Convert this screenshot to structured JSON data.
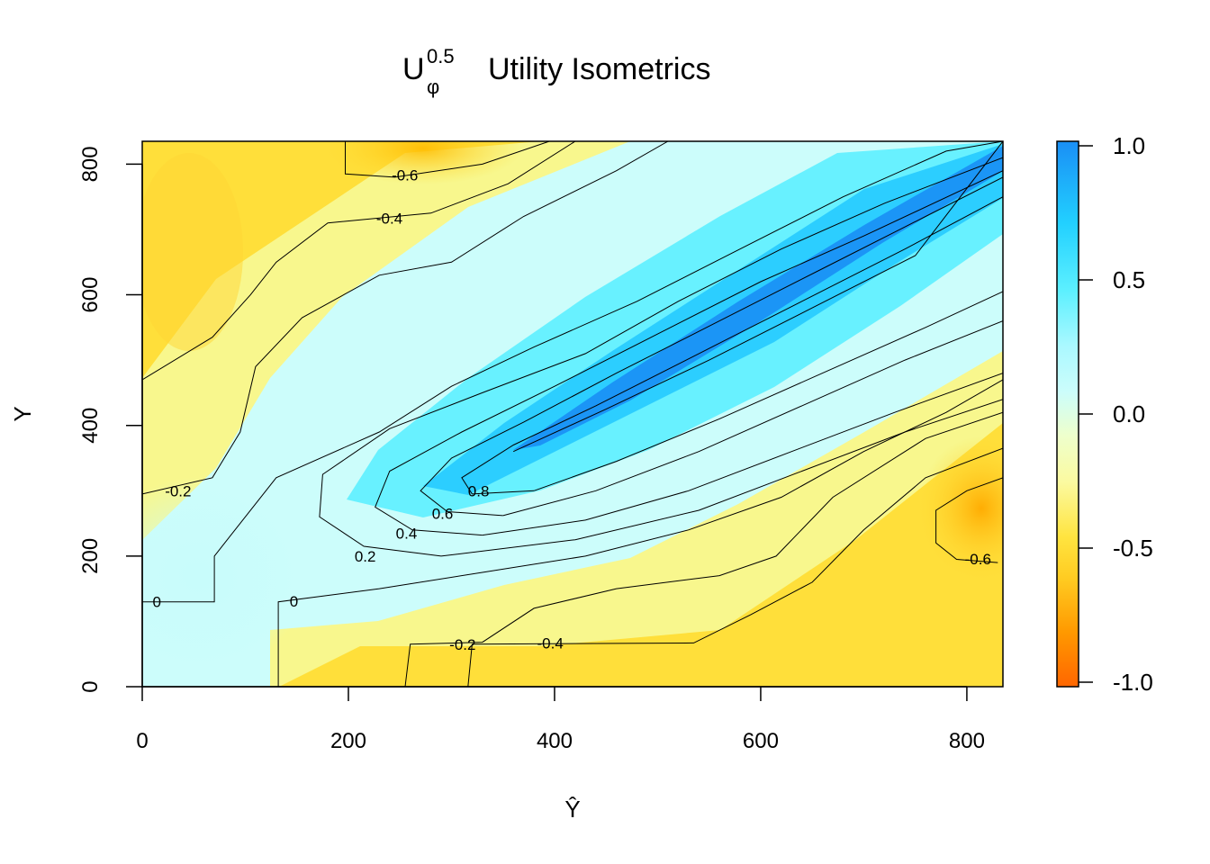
{
  "chart_data": {
    "type": "contour",
    "title": {
      "symbol": "U",
      "superscript": "0.5",
      "subscript": "φ",
      "text": "Utility Isometrics"
    },
    "xlabel": "Ŷ",
    "ylabel": "Y",
    "xlim": [
      0,
      835
    ],
    "ylim": [
      0,
      835
    ],
    "x_ticks": [
      0,
      200,
      400,
      600,
      800
    ],
    "y_ticks": [
      0,
      200,
      400,
      600,
      800
    ],
    "grid": false,
    "colorbar": {
      "placement": "right",
      "range": [
        -1.0,
        1.0
      ],
      "ticks": [
        {
          "value": 1.0,
          "label": "1.0"
        },
        {
          "value": 0.5,
          "label": "0.5"
        },
        {
          "value": 0.0,
          "label": "0.0"
        },
        {
          "value": -0.5,
          "label": "-0.5"
        },
        {
          "value": -1.0,
          "label": "-1.0"
        }
      ],
      "colors": [
        {
          "value": 1.0,
          "color": "#1a8ff5"
        },
        {
          "value": 0.7,
          "color": "#22d0ff"
        },
        {
          "value": 0.45,
          "color": "#5df0ff"
        },
        {
          "value": 0.25,
          "color": "#aaf8ff"
        },
        {
          "value": 0.08,
          "color": "#ccfdfb"
        },
        {
          "value": -0.08,
          "color": "#eeffcc"
        },
        {
          "value": -0.25,
          "color": "#fbfaa0"
        },
        {
          "value": -0.45,
          "color": "#ffe440"
        },
        {
          "value": -0.6,
          "color": "#ffcc22"
        },
        {
          "value": -0.8,
          "color": "#ff9900"
        },
        {
          "value": -1.0,
          "color": "#ff6600"
        }
      ]
    },
    "contours": [
      {
        "level": "-0.6",
        "label": "-0.6",
        "points": [
          [
            197,
            835
          ],
          [
            197,
            785
          ],
          [
            245,
            780
          ],
          [
            330,
            800
          ],
          [
            395,
            835
          ]
        ],
        "label_at": [
          242,
          783
        ]
      },
      {
        "level": "-0.4",
        "label": "-0.4",
        "points": [
          [
            420,
            835
          ],
          [
            355,
            770
          ],
          [
            280,
            725
          ],
          [
            180,
            710
          ],
          [
            130,
            650
          ],
          [
            105,
            600
          ],
          [
            68,
            535
          ],
          [
            0,
            470
          ]
        ],
        "label_at": [
          227,
          717
        ]
      },
      {
        "level": "-0.2",
        "label": "-0.2",
        "points": [
          [
            0,
            295
          ],
          [
            68,
            320
          ],
          [
            95,
            390
          ],
          [
            110,
            490
          ],
          [
            155,
            565
          ],
          [
            230,
            630
          ],
          [
            300,
            650
          ],
          [
            370,
            720
          ],
          [
            460,
            790
          ],
          [
            510,
            835
          ]
        ],
        "label_at": [
          22,
          300
        ]
      },
      {
        "level": "0",
        "label": "0",
        "points": [
          [
            0,
            130
          ],
          [
            70,
            130
          ],
          [
            70,
            200
          ],
          [
            130,
            320
          ],
          [
            230,
            390
          ],
          [
            300,
            460
          ],
          [
            380,
            520
          ],
          [
            480,
            590
          ],
          [
            580,
            670
          ],
          [
            680,
            750
          ],
          [
            780,
            820
          ],
          [
            835,
            835
          ]
        ],
        "label_at": [
          10,
          130
        ]
      },
      {
        "level": "0",
        "label": "0",
        "points": [
          [
            132,
            0
          ],
          [
            132,
            130
          ],
          [
            230,
            150
          ],
          [
            330,
            175
          ],
          [
            430,
            200
          ],
          [
            530,
            240
          ],
          [
            620,
            290
          ],
          [
            700,
            360
          ],
          [
            780,
            420
          ],
          [
            835,
            470
          ]
        ],
        "label_at": [
          143,
          131
        ]
      },
      {
        "level": "0.2",
        "label": "0.2",
        "points": [
          [
            290,
            200
          ],
          [
            215,
            215
          ],
          [
            172,
            260
          ],
          [
            175,
            325
          ],
          [
            240,
            395
          ],
          [
            330,
            450
          ],
          [
            430,
            510
          ],
          [
            520,
            590
          ],
          [
            620,
            670
          ],
          [
            720,
            740
          ],
          [
            835,
            810
          ]
        ],
        "label_at": [
          206,
          200
        ]
      },
      {
        "level": "0.2",
        "label": "0.2",
        "points": [
          [
            290,
            200
          ],
          [
            420,
            225
          ],
          [
            540,
            270
          ],
          [
            640,
            330
          ],
          [
            740,
            390
          ],
          [
            835,
            440
          ]
        ],
        "label_at": null
      },
      {
        "level": "0.4",
        "label": "0.4",
        "points": [
          [
            330,
            232
          ],
          [
            262,
            240
          ],
          [
            226,
            275
          ],
          [
            240,
            330
          ],
          [
            310,
            390
          ],
          [
            400,
            460
          ],
          [
            500,
            540
          ],
          [
            600,
            620
          ],
          [
            700,
            690
          ],
          [
            835,
            790
          ]
        ],
        "label_at": [
          246,
          235
        ]
      },
      {
        "level": "0.4",
        "label": "0.4",
        "points": [
          [
            330,
            232
          ],
          [
            430,
            255
          ],
          [
            530,
            300
          ],
          [
            630,
            360
          ],
          [
            730,
            420
          ],
          [
            835,
            480
          ]
        ],
        "label_at": null
      },
      {
        "level": "0.6",
        "label": "0.6",
        "points": [
          [
            350,
            262
          ],
          [
            296,
            268
          ],
          [
            270,
            300
          ],
          [
            300,
            350
          ],
          [
            370,
            405
          ],
          [
            460,
            480
          ],
          [
            560,
            560
          ],
          [
            660,
            640
          ],
          [
            760,
            720
          ],
          [
            835,
            780
          ]
        ],
        "label_at": [
          281,
          265
        ]
      },
      {
        "level": "0.6",
        "label": "0.6",
        "points": [
          [
            350,
            262
          ],
          [
            440,
            300
          ],
          [
            540,
            360
          ],
          [
            640,
            430
          ],
          [
            740,
            500
          ],
          [
            835,
            560
          ]
        ],
        "label_at": null
      },
      {
        "level": "0.8",
        "label": "0.8",
        "points": [
          [
            380,
            300
          ],
          [
            320,
            295
          ],
          [
            310,
            320
          ],
          [
            360,
            370
          ],
          [
            440,
            430
          ],
          [
            540,
            510
          ],
          [
            640,
            590
          ],
          [
            740,
            670
          ],
          [
            835,
            750
          ]
        ],
        "label_at": [
          316,
          300
        ]
      },
      {
        "level": "0.8",
        "label": "0.8",
        "points": [
          [
            380,
            300
          ],
          [
            460,
            345
          ],
          [
            560,
            410
          ],
          [
            660,
            480
          ],
          [
            760,
            550
          ],
          [
            835,
            605
          ]
        ],
        "label_at": null
      },
      {
        "level": "1.0",
        "label": "",
        "points": [
          [
            360,
            360
          ],
          [
            450,
            425
          ],
          [
            550,
            500
          ],
          [
            650,
            580
          ],
          [
            750,
            660
          ],
          [
            835,
            835
          ]
        ],
        "label_at": null
      },
      {
        "level": "-0.2",
        "label": "-0.2",
        "points": [
          [
            255,
            0
          ],
          [
            260,
            65
          ],
          [
            330,
            68
          ],
          [
            380,
            120
          ],
          [
            460,
            150
          ],
          [
            560,
            170
          ],
          [
            615,
            200
          ],
          [
            670,
            290
          ],
          [
            760,
            380
          ],
          [
            835,
            420
          ]
        ],
        "label_at": [
          298,
          65
        ]
      },
      {
        "level": "-0.4",
        "label": "-0.4",
        "points": [
          [
            316,
            0
          ],
          [
            320,
            65
          ],
          [
            535,
            67
          ],
          [
            590,
            110
          ],
          [
            650,
            160
          ],
          [
            700,
            240
          ],
          [
            760,
            320
          ],
          [
            835,
            365
          ]
        ],
        "label_at": [
          383,
          67
        ]
      },
      {
        "level": "-0.6",
        "label": "-0.6",
        "points": [
          [
            835,
            320
          ],
          [
            800,
            300
          ],
          [
            770,
            270
          ],
          [
            770,
            220
          ],
          [
            790,
            195
          ],
          [
            830,
            190
          ]
        ],
        "label_at": [
          798,
          196
        ]
      }
    ]
  }
}
